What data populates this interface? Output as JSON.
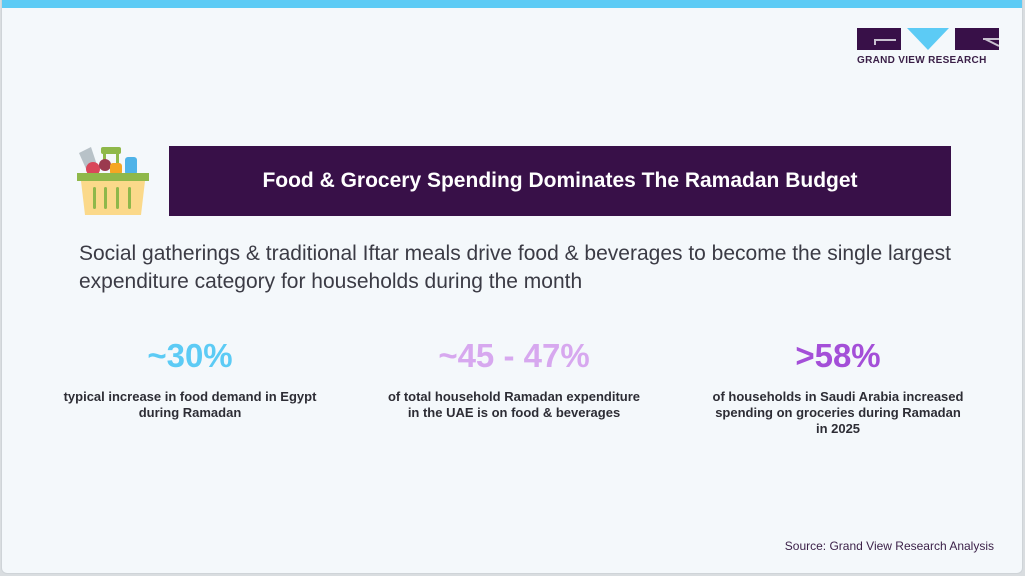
{
  "brand": {
    "name": "GRAND VIEW RESEARCH",
    "colors": {
      "primary": "#381048",
      "accent": "#5ccbf5"
    }
  },
  "banner": {
    "title": "Food & Grocery Spending Dominates The Ramadan Budget",
    "icon": "grocery-basket-icon"
  },
  "subtitle": "Social gatherings & traditional Iftar meals drive food & beverages to become the single largest expenditure category for households during the month",
  "stats": [
    {
      "value": "~30%",
      "desc": "typical increase in food demand in Egypt during Ramadan",
      "color": "#5ccbf5"
    },
    {
      "value": "~45 - 47%",
      "desc": "of total household Ramadan expenditure in the UAE is on food & beverages",
      "color": "#d7a8ef"
    },
    {
      "value": ">58%",
      "desc": "of households in Saudi Arabia increased spending on groceries during Ramadan in 2025",
      "color": "#a44fd8"
    }
  ],
  "source": "Source: Grand View Research Analysis"
}
